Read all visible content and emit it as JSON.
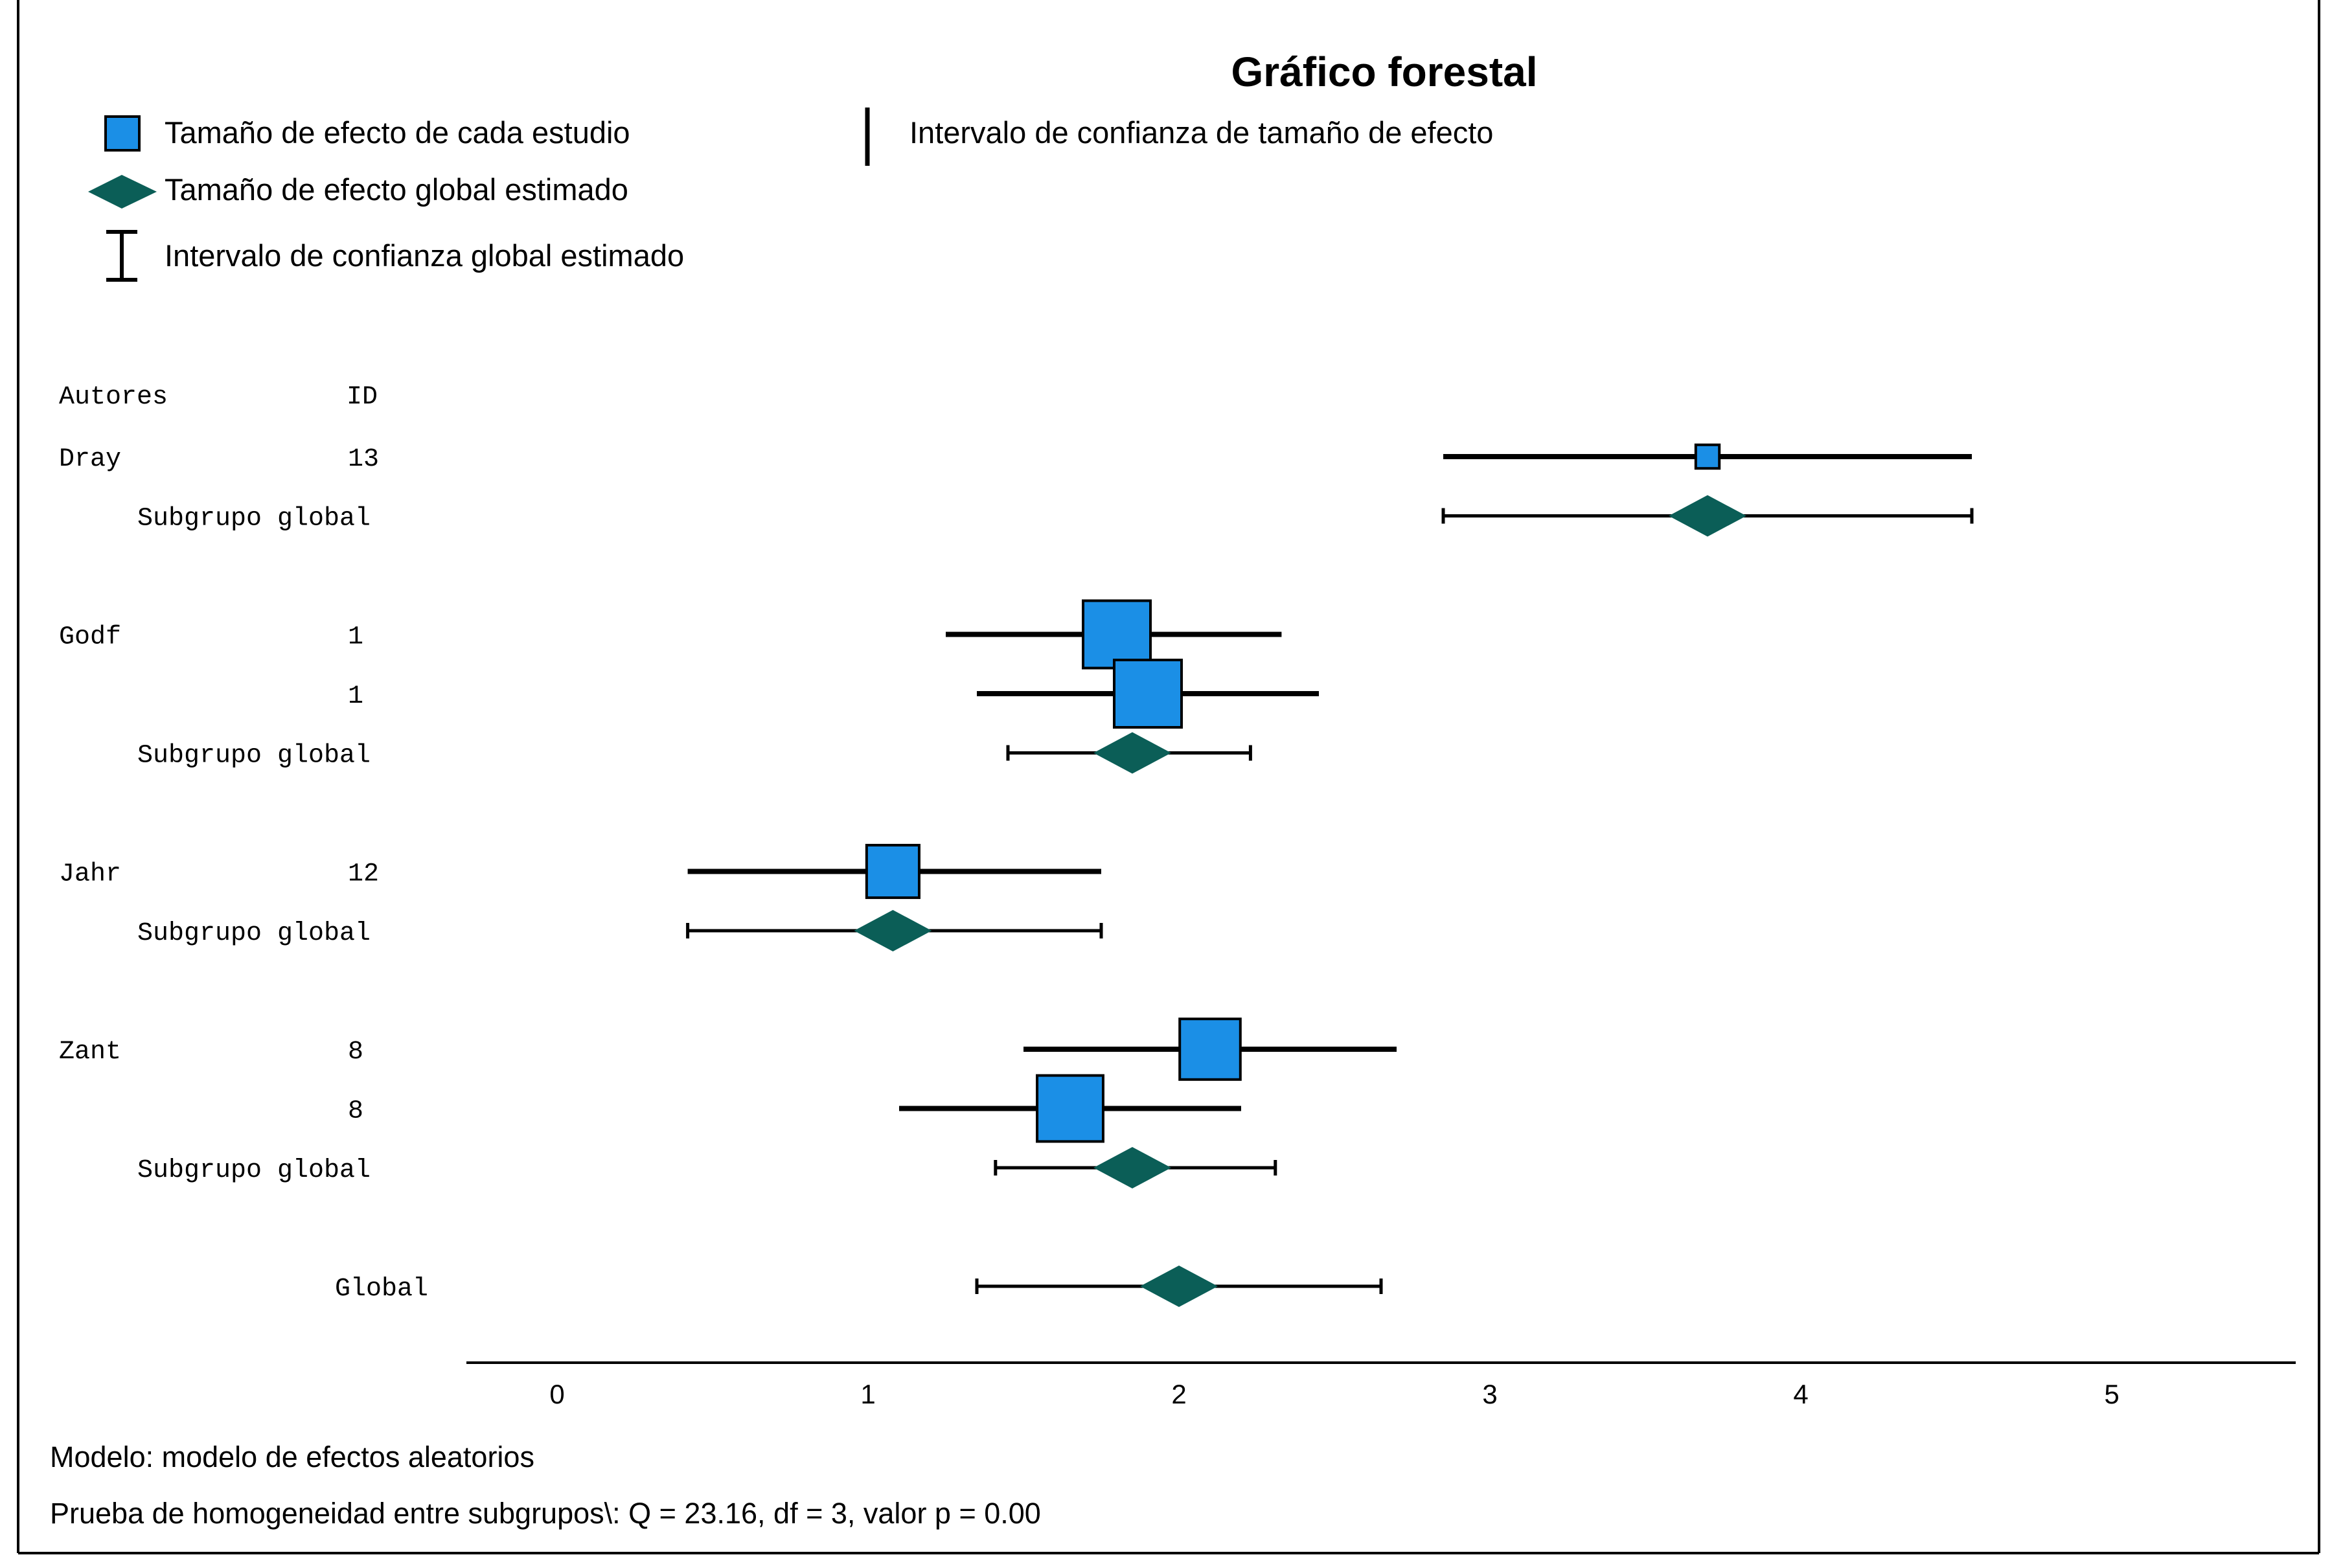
{
  "chart_data": {
    "type": "forest",
    "title": "Gráfico forestal",
    "legend": {
      "study_effect": "Tamaño de efecto de cada estudio",
      "study_ci": "Intervalo de confianza de tamaño de efecto",
      "global_effect": "Tamaño de efecto global estimado",
      "global_ci": "Intervalo de confianza global estimado"
    },
    "columns": {
      "authors": "Autores",
      "id": "ID"
    },
    "xaxis": {
      "ticks": [
        "0",
        "1",
        "2",
        "3",
        "4",
        "5"
      ],
      "xlim": [
        -0.29,
        5.6
      ]
    },
    "groups": [
      {
        "author": "Dray",
        "studies": [
          {
            "id": "13",
            "est": 3.7,
            "lo": 2.85,
            "hi": 4.55,
            "size": 0.35
          }
        ],
        "subgroup": {
          "label": "Subgrupo global",
          "est": 3.7,
          "lo": 2.85,
          "hi": 4.55
        }
      },
      {
        "author": "Godf",
        "studies": [
          {
            "id": "1",
            "est": 1.8,
            "lo": 1.25,
            "hi": 2.33,
            "size": 1.0
          },
          {
            "id": "1",
            "est": 1.9,
            "lo": 1.35,
            "hi": 2.45,
            "size": 1.0
          }
        ],
        "subgroup": {
          "label": "Subgrupo global",
          "est": 1.85,
          "lo": 1.45,
          "hi": 2.23
        }
      },
      {
        "author": "Jahr",
        "studies": [
          {
            "id": "12",
            "est": 1.08,
            "lo": 0.42,
            "hi": 1.75,
            "size": 0.78
          }
        ],
        "subgroup": {
          "label": "Subgrupo global",
          "est": 1.08,
          "lo": 0.42,
          "hi": 1.75
        }
      },
      {
        "author": "Zant",
        "studies": [
          {
            "id": "8",
            "est": 2.1,
            "lo": 1.5,
            "hi": 2.7,
            "size": 0.9
          },
          {
            "id": "8",
            "est": 1.65,
            "lo": 1.1,
            "hi": 2.2,
            "size": 0.98
          }
        ],
        "subgroup": {
          "label": "Subgrupo global",
          "est": 1.85,
          "lo": 1.41,
          "hi": 2.31
        }
      }
    ],
    "overall": {
      "label": "Global",
      "est": 2.0,
      "lo": 1.35,
      "hi": 2.65
    },
    "footer": {
      "model": "Modelo: modelo de efectos aleatorios",
      "heterogeneity": "Prueba de homogeneidad entre subgrupos\\: Q = 23.16, df = 3, valor p = 0.00"
    },
    "colors": {
      "square": "#1b8fe6",
      "diamond": "#0b5e57",
      "line": "#000000"
    }
  }
}
